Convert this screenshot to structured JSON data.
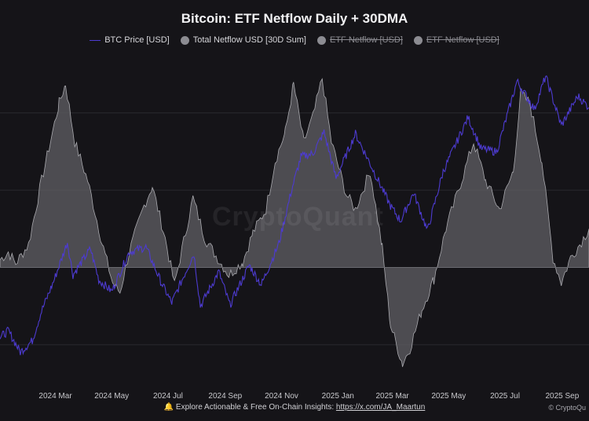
{
  "chart_data": {
    "type": "line",
    "title": "Bitcoin: ETF Netflow Daily + 30DMA",
    "legend_position": "top-center",
    "grid": true,
    "x_ticks": [
      "2024 Mar",
      "2024 May",
      "2024 Jul",
      "2024 Sep",
      "2024 Nov",
      "2025 Jan",
      "2025 Mar",
      "2025 May",
      "2025 Jul",
      "2025 Sep"
    ],
    "x_range": [
      "2024-01-01",
      "2025-09-30"
    ],
    "series": [
      {
        "name": "BTC Price [USD]",
        "role": "line",
        "color": "#4d3bd1",
        "visible": true,
        "points": [
          [
            "2024-01-01",
            44000
          ],
          [
            "2024-01-10",
            46000
          ],
          [
            "2024-01-23",
            39500
          ],
          [
            "2024-02-05",
            43000
          ],
          [
            "2024-02-15",
            52000
          ],
          [
            "2024-02-28",
            61000
          ],
          [
            "2024-03-14",
            73000
          ],
          [
            "2024-03-20",
            63000
          ],
          [
            "2024-04-08",
            71000
          ],
          [
            "2024-04-17",
            61500
          ],
          [
            "2024-05-01",
            58000
          ],
          [
            "2024-05-20",
            70000
          ],
          [
            "2024-06-07",
            71500
          ],
          [
            "2024-06-24",
            60500
          ],
          [
            "2024-07-05",
            54500
          ],
          [
            "2024-07-29",
            69500
          ],
          [
            "2024-08-05",
            53500
          ],
          [
            "2024-08-25",
            64000
          ],
          [
            "2024-09-06",
            53800
          ],
          [
            "2024-09-27",
            66000
          ],
          [
            "2024-10-10",
            60000
          ],
          [
            "2024-10-29",
            72500
          ],
          [
            "2024-11-12",
            89000
          ],
          [
            "2024-11-22",
            99000
          ],
          [
            "2024-12-05",
            100000
          ],
          [
            "2024-12-17",
            106500
          ],
          [
            "2024-12-30",
            92500
          ],
          [
            "2025-01-20",
            106000
          ],
          [
            "2025-02-03",
            98000
          ],
          [
            "2025-02-27",
            84000
          ],
          [
            "2025-03-10",
            79500
          ],
          [
            "2025-03-24",
            88000
          ],
          [
            "2025-04-08",
            76500
          ],
          [
            "2025-04-25",
            94500
          ],
          [
            "2025-05-22",
            111000
          ],
          [
            "2025-06-05",
            101500
          ],
          [
            "2025-06-22",
            100500
          ],
          [
            "2025-07-14",
            122000
          ],
          [
            "2025-08-02",
            113500
          ],
          [
            "2025-08-14",
            123500
          ],
          [
            "2025-08-31",
            108500
          ],
          [
            "2025-09-18",
            117500
          ],
          [
            "2025-09-30",
            114000
          ]
        ]
      },
      {
        "name": "Total Netflow USD [30D Sum]",
        "role": "area",
        "color": "#8c8c92",
        "visible": true,
        "points": [
          [
            "2024-01-01",
            0.4
          ],
          [
            "2024-01-10",
            0.8
          ],
          [
            "2024-01-18",
            0.2
          ],
          [
            "2024-02-01",
            1.2
          ],
          [
            "2024-02-15",
            4.5
          ],
          [
            "2024-03-05",
            8.5
          ],
          [
            "2024-03-12",
            9.5
          ],
          [
            "2024-03-22",
            6.5
          ],
          [
            "2024-04-05",
            4.5
          ],
          [
            "2024-04-22",
            1.0
          ],
          [
            "2024-05-02",
            -0.8
          ],
          [
            "2024-05-10",
            -1.3
          ],
          [
            "2024-05-20",
            0.8
          ],
          [
            "2024-06-05",
            3.2
          ],
          [
            "2024-06-14",
            4.2
          ],
          [
            "2024-06-28",
            1.5
          ],
          [
            "2024-07-08",
            -0.9
          ],
          [
            "2024-07-20",
            1.8
          ],
          [
            "2024-07-28",
            3.6
          ],
          [
            "2024-08-10",
            1.5
          ],
          [
            "2024-08-22",
            0.6
          ],
          [
            "2024-09-05",
            -0.4
          ],
          [
            "2024-09-20",
            0.3
          ],
          [
            "2024-10-01",
            1.8
          ],
          [
            "2024-10-15",
            3.0
          ],
          [
            "2024-10-25",
            5.5
          ],
          [
            "2024-11-05",
            7.0
          ],
          [
            "2024-11-14",
            9.5
          ],
          [
            "2024-11-25",
            6.5
          ],
          [
            "2024-12-05",
            7.8
          ],
          [
            "2024-12-15",
            9.8
          ],
          [
            "2024-12-25",
            6.5
          ],
          [
            "2025-01-10",
            3.8
          ],
          [
            "2025-01-20",
            3.0
          ],
          [
            "2025-02-05",
            5.0
          ],
          [
            "2025-02-18",
            1.0
          ],
          [
            "2025-02-27",
            -3.0
          ],
          [
            "2025-03-12",
            -5.0
          ],
          [
            "2025-03-20",
            -4.2
          ],
          [
            "2025-04-02",
            -2.2
          ],
          [
            "2025-04-15",
            -0.6
          ],
          [
            "2025-04-28",
            2.0
          ],
          [
            "2025-05-15",
            4.5
          ],
          [
            "2025-05-28",
            6.5
          ],
          [
            "2025-06-10",
            4.5
          ],
          [
            "2025-06-25",
            3.0
          ],
          [
            "2025-07-10",
            5.0
          ],
          [
            "2025-07-18",
            9.0
          ],
          [
            "2025-07-28",
            8.5
          ],
          [
            "2025-08-10",
            5.5
          ],
          [
            "2025-08-22",
            0.5
          ],
          [
            "2025-08-31",
            -0.8
          ],
          [
            "2025-09-10",
            0.5
          ],
          [
            "2025-09-20",
            1.2
          ],
          [
            "2025-09-30",
            2.0
          ]
        ]
      },
      {
        "name": "ETF Netflow [USD]",
        "role": "hidden",
        "color": "#8c8c92",
        "visible": false,
        "points": []
      },
      {
        "name": "ETF Netflow [USD]",
        "role": "hidden",
        "color": "#8c8c92",
        "visible": false,
        "points": []
      }
    ],
    "price_axis_range": [
      30000,
      130000
    ],
    "netflow_axis_range": [
      -6,
      11
    ]
  },
  "watermark": "CryptoQuant",
  "footer": {
    "icon": "bell-icon",
    "text": "Explore Actionable & Free On-Chain Insights: ",
    "link_text": "https://x.com/JA_Maartun",
    "copyright": "© CryptoQu"
  },
  "colors": {
    "background": "#151418",
    "grid": "#2a292e",
    "zero_line": "#6a6a70"
  }
}
